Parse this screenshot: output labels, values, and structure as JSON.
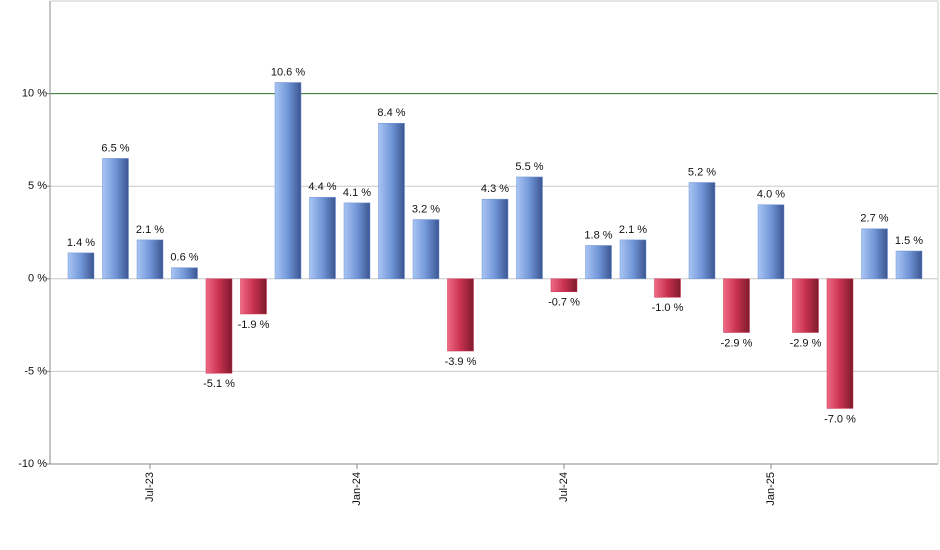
{
  "chart_data": {
    "type": "bar",
    "categories": [
      null,
      null,
      "Jul-23",
      null,
      null,
      null,
      null,
      null,
      "Jan-24",
      null,
      null,
      null,
      null,
      null,
      "Jul-24",
      null,
      null,
      null,
      null,
      null,
      "Jan-25",
      null,
      null,
      null,
      null
    ],
    "values": [
      1.4,
      6.5,
      2.1,
      0.6,
      -5.1,
      -1.9,
      10.6,
      4.4,
      4.1,
      8.4,
      3.2,
      -3.9,
      4.3,
      5.5,
      -0.7,
      1.8,
      2.1,
      -1.0,
      5.2,
      -2.9,
      4.0,
      -2.9,
      -7.0,
      2.7,
      1.5
    ],
    "value_labels": [
      "1.4 %",
      "6.5 %",
      "2.1 %",
      "0.6 %",
      "-5.1 %",
      "-1.9 %",
      "10.6 %",
      "4.4 %",
      "4.1 %",
      "8.4 %",
      "3.2 %",
      "-3.9 %",
      "4.3 %",
      "5.5 %",
      "-0.7 %",
      "1.8 %",
      "2.1 %",
      "-1.0 %",
      "5.2 %",
      "-2.9 %",
      "4.0 %",
      "-2.9 %",
      "-7.0 %",
      "2.7 %",
      "1.5 %"
    ],
    "positive_color": "#6f93d6",
    "negative_color": "#c8324f",
    "ylim": [
      -10,
      15
    ],
    "yticks": [
      {
        "value": -10,
        "label": "-10 %"
      },
      {
        "value": -5,
        "label": "-5 %"
      },
      {
        "value": 0,
        "label": "0 %"
      },
      {
        "value": 5,
        "label": "5 %"
      },
      {
        "value": 10,
        "label": "10 %"
      }
    ],
    "grid": true,
    "reference_line": {
      "value": 10,
      "color": "#2e7d32"
    }
  }
}
